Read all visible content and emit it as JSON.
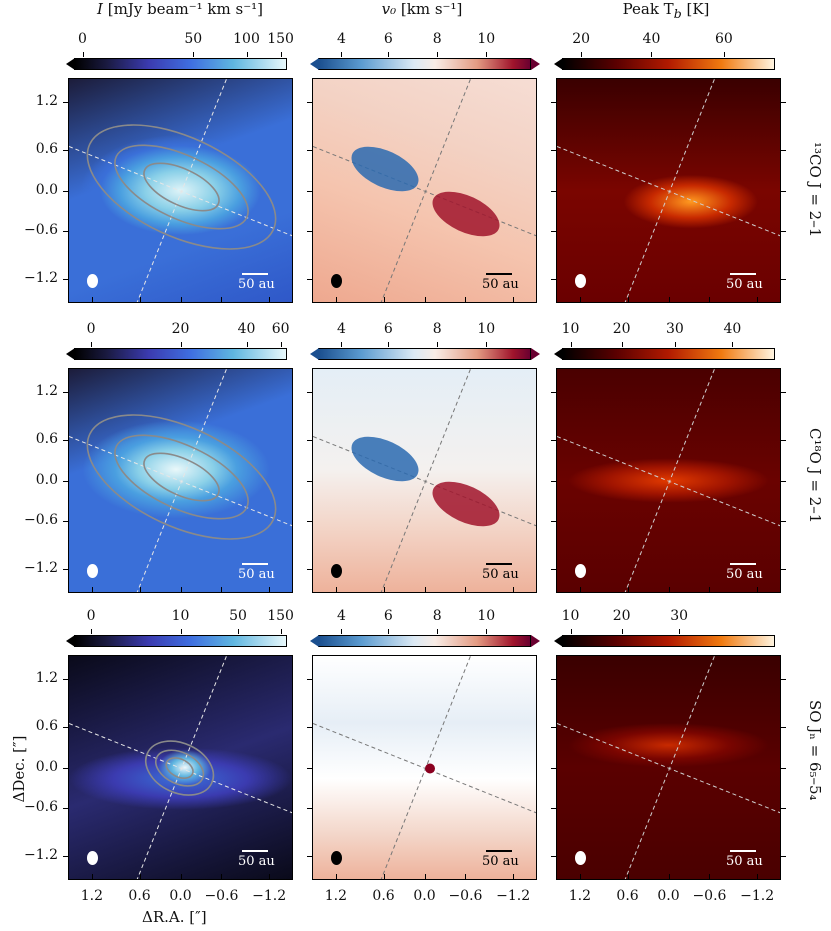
{
  "columns": [
    {
      "title_html_var": "I",
      "title_units": "[mJy beam⁻¹ km s⁻¹]",
      "var": "I"
    },
    {
      "title_html_var": "v₀",
      "title_units": "[km s⁻¹]",
      "var": "v0"
    },
    {
      "title_html_var": "Peak Tᵇ",
      "title_units": "[K]",
      "var": "Tb"
    }
  ],
  "col_titles": [
    "I [mJy beam⁻¹ km s⁻¹]",
    "v₀ [km s⁻¹]",
    "Peak Tᵦ [K]"
  ],
  "title_parts": {
    "c0_var": "I",
    "c0_units": "[mJy beam⁻¹ km s⁻¹]",
    "c1_var": "v₀",
    "c1_units": "[km s⁻¹]",
    "c2_var": "Peak T",
    "c2_sub": "b",
    "c2_units": "[K]"
  },
  "row_labels": [
    "¹³CO J = 2–1",
    "C¹⁸O J = 2–1",
    "SO Jₙ = 6₅–5₄"
  ],
  "colors": {
    "intensity": "#3a6fd8",
    "velocity_blue": "#2a6ab0",
    "velocity_red": "#a0142c",
    "tb": "#b21a00"
  },
  "chart_data": [
    {
      "type": "heatmap",
      "row": "13CO J=2-1",
      "quantity": "I",
      "colorbar_ticks": [
        "0",
        "50",
        "100",
        "150"
      ],
      "xlim": [
        1.4,
        -1.4
      ],
      "ylim": [
        -1.4,
        1.4
      ]
    },
    {
      "type": "heatmap",
      "row": "13CO J=2-1",
      "quantity": "v0",
      "colorbar_ticks": [
        "4",
        "6",
        "8",
        "10"
      ],
      "xlim": [
        1.4,
        -1.4
      ],
      "ylim": [
        -1.4,
        1.4
      ]
    },
    {
      "type": "heatmap",
      "row": "13CO J=2-1",
      "quantity": "Peak Tb",
      "colorbar_ticks": [
        "20",
        "40",
        "60"
      ],
      "xlim": [
        1.4,
        -1.4
      ],
      "ylim": [
        -1.4,
        1.4
      ]
    },
    {
      "type": "heatmap",
      "row": "C18O J=2-1",
      "quantity": "I",
      "colorbar_ticks": [
        "0",
        "20",
        "40",
        "60"
      ],
      "xlim": [
        1.4,
        -1.4
      ],
      "ylim": [
        -1.4,
        1.4
      ]
    },
    {
      "type": "heatmap",
      "row": "C18O J=2-1",
      "quantity": "v0",
      "colorbar_ticks": [
        "4",
        "6",
        "8",
        "10"
      ],
      "xlim": [
        1.4,
        -1.4
      ],
      "ylim": [
        -1.4,
        1.4
      ]
    },
    {
      "type": "heatmap",
      "row": "C18O J=2-1",
      "quantity": "Peak Tb",
      "colorbar_ticks": [
        "10",
        "20",
        "30",
        "40"
      ],
      "xlim": [
        1.4,
        -1.4
      ],
      "ylim": [
        -1.4,
        1.4
      ]
    },
    {
      "type": "heatmap",
      "row": "SO JN=65-54",
      "quantity": "I",
      "colorbar_ticks": [
        "0",
        "10",
        "50",
        "150"
      ],
      "xlim": [
        1.4,
        -1.4
      ],
      "ylim": [
        -1.4,
        1.4
      ]
    },
    {
      "type": "heatmap",
      "row": "SO JN=65-54",
      "quantity": "v0",
      "colorbar_ticks": [
        "4",
        "6",
        "8",
        "10"
      ],
      "xlim": [
        1.4,
        -1.4
      ],
      "ylim": [
        -1.4,
        1.4
      ]
    },
    {
      "type": "heatmap",
      "row": "SO JN=65-54",
      "quantity": "Peak Tb",
      "colorbar_ticks": [
        "10",
        "20",
        "30"
      ],
      "xlim": [
        1.4,
        -1.4
      ],
      "ylim": [
        -1.4,
        1.4
      ]
    }
  ],
  "y_ticks": [
    "1.2",
    "0.6",
    "0.0",
    "−0.6",
    "−1.2"
  ],
  "x_ticks": [
    "1.2",
    "0.6",
    "0.0",
    "−0.6",
    "−1.2"
  ],
  "y_axis_title": "ΔDec. [″]",
  "x_axis_title": "ΔR.A. [″]",
  "scale_label": "50 au"
}
